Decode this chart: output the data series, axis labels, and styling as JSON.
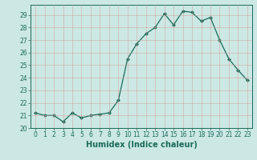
{
  "x": [
    0,
    1,
    2,
    3,
    4,
    5,
    6,
    7,
    8,
    9,
    10,
    11,
    12,
    13,
    14,
    15,
    16,
    17,
    18,
    19,
    20,
    21,
    22,
    23
  ],
  "y": [
    21.2,
    21.0,
    21.0,
    20.5,
    21.2,
    20.8,
    21.0,
    21.1,
    21.2,
    22.2,
    25.5,
    26.7,
    27.5,
    28.0,
    29.1,
    28.2,
    29.3,
    29.2,
    28.5,
    28.8,
    27.0,
    25.5,
    24.6,
    23.8
  ],
  "line_color": "#1a6b5a",
  "marker": "D",
  "marker_size": 2,
  "bg_color": "#cce8e4",
  "grid_color": "#b0d8d4",
  "xlabel": "Humidex (Indice chaleur)",
  "ylim": [
    20,
    29.8
  ],
  "xlim": [
    -0.5,
    23.5
  ],
  "yticks": [
    20,
    21,
    22,
    23,
    24,
    25,
    26,
    27,
    28,
    29
  ],
  "xticks": [
    0,
    1,
    2,
    3,
    4,
    5,
    6,
    7,
    8,
    9,
    10,
    11,
    12,
    13,
    14,
    15,
    16,
    17,
    18,
    19,
    20,
    21,
    22,
    23
  ],
  "tick_color": "#1a6b5a",
  "label_fontsize": 7,
  "tick_fontsize": 5.5
}
